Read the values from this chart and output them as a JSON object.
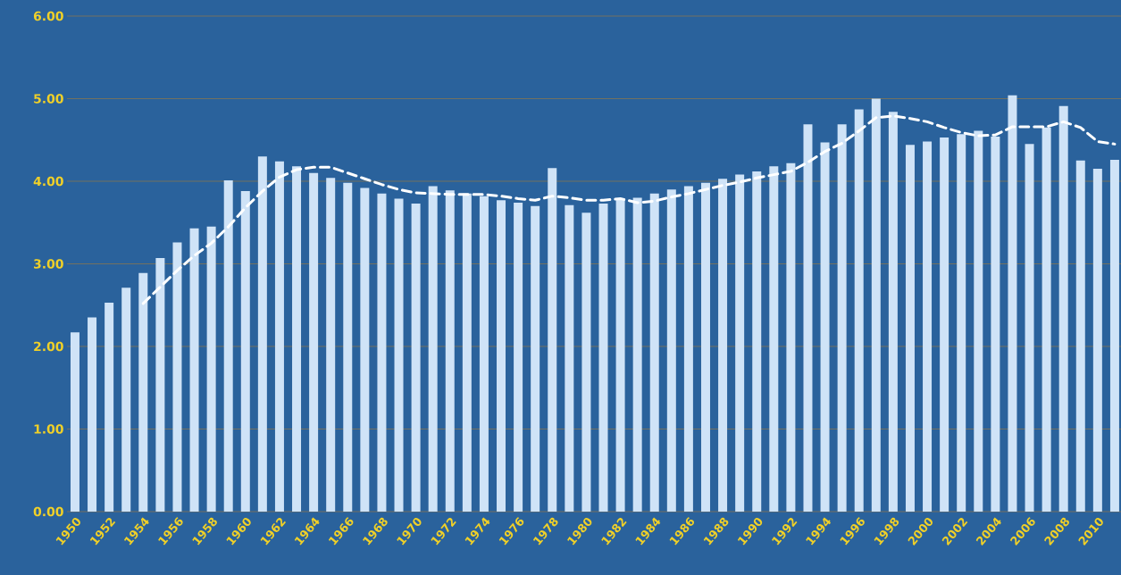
{
  "chart_data": {
    "type": "bar",
    "categories": [
      "1950",
      null,
      "1952",
      null,
      "1954",
      null,
      "1956",
      null,
      "1958",
      null,
      "1960",
      null,
      "1962",
      null,
      "1964",
      null,
      "1966",
      null,
      "1968",
      null,
      "1970",
      null,
      "1972",
      null,
      "1974",
      null,
      "1976",
      null,
      "1978",
      null,
      "1980",
      null,
      "1982",
      null,
      "1984",
      null,
      "1986",
      null,
      "1988",
      null,
      "1990",
      null,
      "1992",
      null,
      "1994",
      null,
      "1996",
      null,
      "1998",
      null,
      "2000",
      null,
      "2002",
      null,
      "2004",
      null,
      "2006",
      null,
      "2008",
      null,
      "2010",
      null
    ],
    "series": [
      {
        "color": "#cfe3f7",
        "values": [
          2.17,
          2.35,
          2.53,
          2.71,
          2.89,
          3.07,
          3.26,
          3.43,
          3.45,
          4.01,
          3.88,
          4.3,
          4.24,
          4.18,
          4.1,
          4.04,
          3.98,
          3.92,
          3.85,
          3.79,
          3.73,
          3.94,
          3.89,
          3.85,
          3.82,
          3.77,
          3.74,
          3.7,
          4.16,
          3.71,
          3.62,
          3.73,
          3.79,
          3.8,
          3.85,
          3.9,
          3.94,
          3.98,
          4.03,
          4.08,
          4.12,
          4.18,
          4.22,
          4.69,
          4.47,
          4.69,
          4.87,
          5.0,
          4.84,
          4.44,
          4.48,
          4.53,
          4.57,
          4.61,
          4.54,
          5.04,
          4.45,
          4.65,
          4.91,
          4.25,
          4.15,
          4.26
        ]
      },
      {
        "type": "line",
        "color": "#ffffff",
        "line_style": "dashed",
        "values": [
          null,
          null,
          null,
          null,
          2.52,
          2.72,
          2.92,
          3.1,
          3.25,
          3.45,
          3.68,
          3.88,
          4.05,
          4.14,
          4.17,
          4.17,
          4.1,
          4.03,
          3.96,
          3.9,
          3.86,
          3.85,
          3.84,
          3.84,
          3.84,
          3.82,
          3.79,
          3.77,
          3.82,
          3.8,
          3.77,
          3.77,
          3.79,
          3.74,
          3.76,
          3.81,
          3.85,
          3.9,
          3.95,
          3.99,
          4.04,
          4.08,
          4.12,
          4.23,
          4.36,
          4.46,
          4.61,
          4.77,
          4.79,
          4.76,
          4.72,
          4.65,
          4.59,
          4.55,
          4.56,
          4.66,
          4.66,
          4.66,
          4.72,
          4.65,
          4.48,
          4.45
        ]
      }
    ],
    "ylim": [
      0,
      6
    ],
    "yticks": [
      {
        "value": 0,
        "label": "0.00"
      },
      {
        "value": 1,
        "label": "1.00"
      },
      {
        "value": 2,
        "label": "2.00"
      },
      {
        "value": 3,
        "label": "3.00"
      },
      {
        "value": 4,
        "label": "4.00"
      },
      {
        "value": 5,
        "label": "5.00"
      },
      {
        "value": 6,
        "label": "6.00"
      }
    ],
    "grid": "y"
  }
}
